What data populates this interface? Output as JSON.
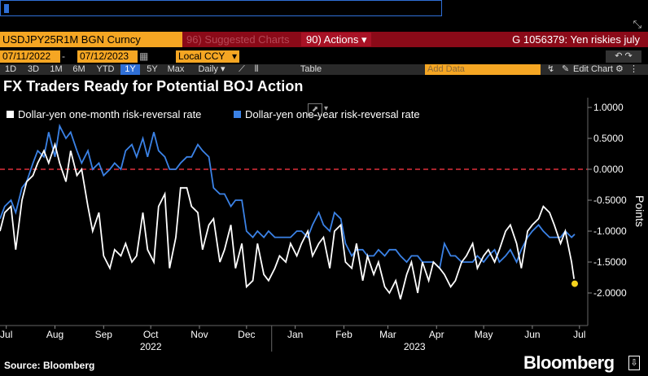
{
  "command_line": {
    "value": ""
  },
  "toolbar": {
    "ticker": "USDJPY25R1M BGN Curncy",
    "suggested": "96) Suggested Charts",
    "actions": "90) Actions",
    "actions_arrow": "▾",
    "ticket": "G 1056379: Yen riskies july"
  },
  "dates": {
    "start": "07/11/2022",
    "separator": "-",
    "end": "07/12/2023",
    "currency": "Local CCY"
  },
  "ranges": {
    "items": [
      "1D",
      "3D",
      "1M",
      "6M",
      "YTD",
      "1Y",
      "5Y",
      "Max"
    ],
    "selected": "1Y",
    "frequency": "Daily",
    "table": "Table",
    "add_data_placeholder": "Add Data",
    "edit_chart": "Edit Chart"
  },
  "colors": {
    "series1": "#ffffff",
    "series2": "#3b82e6",
    "zero_line": "#e0303a",
    "marker": "#f5d31d",
    "ticker_bg": "#f5a623"
  },
  "footer": {
    "source": "Source: Bloomberg",
    "brand": "Bloomberg"
  },
  "chart_data": {
    "type": "line",
    "title": "FX Traders Ready for Potential BOJ Action",
    "ylabel": "Points",
    "ylim": [
      -2.5,
      1.0
    ],
    "yticks": [
      "1.0000",
      "0.5000",
      "0.0000",
      "-0.5000",
      "-1.0000",
      "-1.5000",
      "-2.0000"
    ],
    "ytick_values": [
      1.0,
      0.5,
      0.0,
      -0.5,
      -1.0,
      -1.5,
      -2.0
    ],
    "xlim": [
      "2022-07-11",
      "2023-07-12"
    ],
    "xticks": [
      "Jul",
      "Aug",
      "Sep",
      "Oct",
      "Nov",
      "Dec",
      "Jan",
      "Feb",
      "Mar",
      "Apr",
      "May",
      "Jun",
      "Jul"
    ],
    "xtick_dates": [
      "2022-07-15",
      "2022-08-15",
      "2022-09-15",
      "2022-10-15",
      "2022-11-15",
      "2022-12-15",
      "2023-01-15",
      "2023-02-15",
      "2023-03-15",
      "2023-04-15",
      "2023-05-15",
      "2023-06-15",
      "2023-07-15"
    ],
    "year_labels": [
      {
        "label": "2022",
        "date": "2022-10-15"
      },
      {
        "label": "2023",
        "date": "2023-04-01"
      }
    ],
    "reference_line": 0.0,
    "legend_position": "top-left",
    "series": [
      {
        "name": "Dollar-yen one-month risk-reversal rate",
        "color": "#ffffff",
        "x": [
          "2022-07-11",
          "2022-07-14",
          "2022-07-18",
          "2022-07-21",
          "2022-07-25",
          "2022-07-28",
          "2022-08-01",
          "2022-08-04",
          "2022-08-08",
          "2022-08-11",
          "2022-08-15",
          "2022-08-18",
          "2022-08-22",
          "2022-08-25",
          "2022-08-29",
          "2022-09-01",
          "2022-09-05",
          "2022-09-08",
          "2022-09-12",
          "2022-09-15",
          "2022-09-19",
          "2022-09-22",
          "2022-09-26",
          "2022-09-29",
          "2022-10-03",
          "2022-10-06",
          "2022-10-10",
          "2022-10-13",
          "2022-10-17",
          "2022-10-20",
          "2022-10-24",
          "2022-10-27",
          "2022-10-31",
          "2022-11-03",
          "2022-11-07",
          "2022-11-10",
          "2022-11-14",
          "2022-11-17",
          "2022-11-21",
          "2022-11-24",
          "2022-11-28",
          "2022-12-01",
          "2022-12-05",
          "2022-12-08",
          "2022-12-12",
          "2022-12-15",
          "2022-12-19",
          "2022-12-22",
          "2022-12-26",
          "2022-12-29",
          "2023-01-02",
          "2023-01-05",
          "2023-01-09",
          "2023-01-12",
          "2023-01-16",
          "2023-01-19",
          "2023-01-23",
          "2023-01-26",
          "2023-01-30",
          "2023-02-02",
          "2023-02-06",
          "2023-02-09",
          "2023-02-13",
          "2023-02-16",
          "2023-02-20",
          "2023-02-23",
          "2023-02-27",
          "2023-03-02",
          "2023-03-06",
          "2023-03-09",
          "2023-03-13",
          "2023-03-16",
          "2023-03-20",
          "2023-03-23",
          "2023-03-27",
          "2023-03-30",
          "2023-04-03",
          "2023-04-06",
          "2023-04-10",
          "2023-04-13",
          "2023-04-17",
          "2023-04-20",
          "2023-04-24",
          "2023-04-27",
          "2023-05-01",
          "2023-05-04",
          "2023-05-08",
          "2023-05-11",
          "2023-05-15",
          "2023-05-18",
          "2023-05-22",
          "2023-05-25",
          "2023-05-29",
          "2023-06-01",
          "2023-06-05",
          "2023-06-08",
          "2023-06-12",
          "2023-06-15",
          "2023-06-19",
          "2023-06-22",
          "2023-06-26",
          "2023-06-29",
          "2023-07-03",
          "2023-07-06",
          "2023-07-10",
          "2023-07-12"
        ],
        "values": [
          -1.0,
          -0.7,
          -0.6,
          -1.3,
          -0.5,
          -0.2,
          -0.1,
          0.1,
          0.3,
          0.1,
          0.4,
          0.1,
          -0.2,
          0.3,
          -0.1,
          0.0,
          -0.6,
          -1.0,
          -0.7,
          -1.4,
          -1.6,
          -1.3,
          -1.4,
          -1.2,
          -1.5,
          -1.4,
          -0.7,
          -1.3,
          -1.5,
          -0.6,
          -0.4,
          -1.6,
          -1.1,
          -0.3,
          -0.3,
          -0.6,
          -0.7,
          -1.3,
          -0.9,
          -0.8,
          -1.5,
          -1.3,
          -0.9,
          -1.6,
          -1.2,
          -1.9,
          -1.8,
          -1.2,
          -1.7,
          -1.8,
          -1.6,
          -1.4,
          -1.5,
          -1.2,
          -1.4,
          -1.2,
          -1.0,
          -1.4,
          -1.2,
          -1.1,
          -1.6,
          -1.0,
          -0.9,
          -1.5,
          -1.6,
          -1.2,
          -1.8,
          -1.4,
          -1.7,
          -1.5,
          -1.9,
          -2.0,
          -1.8,
          -2.1,
          -1.7,
          -1.5,
          -2.0,
          -1.5,
          -1.8,
          -1.5,
          -1.6,
          -1.7,
          -1.9,
          -1.8,
          -1.5,
          -1.4,
          -1.2,
          -1.6,
          -1.4,
          -1.3,
          -1.5,
          -1.3,
          -1.0,
          -0.9,
          -1.2,
          -1.6,
          -1.0,
          -0.9,
          -0.8,
          -0.6,
          -0.7,
          -0.9,
          -1.2,
          -1.0,
          -1.5,
          -1.85
        ]
      },
      {
        "name": "Dollar-yen one-year risk-reversal rate",
        "color": "#3b82e6",
        "x": [
          "2022-07-11",
          "2022-07-14",
          "2022-07-18",
          "2022-07-21",
          "2022-07-25",
          "2022-07-28",
          "2022-08-01",
          "2022-08-04",
          "2022-08-08",
          "2022-08-11",
          "2022-08-15",
          "2022-08-18",
          "2022-08-22",
          "2022-08-25",
          "2022-08-29",
          "2022-09-01",
          "2022-09-05",
          "2022-09-08",
          "2022-09-12",
          "2022-09-15",
          "2022-09-19",
          "2022-09-22",
          "2022-09-26",
          "2022-09-29",
          "2022-10-03",
          "2022-10-06",
          "2022-10-10",
          "2022-10-13",
          "2022-10-17",
          "2022-10-20",
          "2022-10-24",
          "2022-10-27",
          "2022-10-31",
          "2022-11-03",
          "2022-11-07",
          "2022-11-10",
          "2022-11-14",
          "2022-11-17",
          "2022-11-21",
          "2022-11-24",
          "2022-11-28",
          "2022-12-01",
          "2022-12-05",
          "2022-12-08",
          "2022-12-12",
          "2022-12-15",
          "2022-12-19",
          "2022-12-22",
          "2022-12-26",
          "2022-12-29",
          "2023-01-02",
          "2023-01-05",
          "2023-01-09",
          "2023-01-12",
          "2023-01-16",
          "2023-01-19",
          "2023-01-23",
          "2023-01-26",
          "2023-01-30",
          "2023-02-02",
          "2023-02-06",
          "2023-02-09",
          "2023-02-13",
          "2023-02-16",
          "2023-02-20",
          "2023-02-23",
          "2023-02-27",
          "2023-03-02",
          "2023-03-06",
          "2023-03-09",
          "2023-03-13",
          "2023-03-16",
          "2023-03-20",
          "2023-03-23",
          "2023-03-27",
          "2023-03-30",
          "2023-04-03",
          "2023-04-06",
          "2023-04-10",
          "2023-04-13",
          "2023-04-17",
          "2023-04-20",
          "2023-04-24",
          "2023-04-27",
          "2023-05-01",
          "2023-05-04",
          "2023-05-08",
          "2023-05-11",
          "2023-05-15",
          "2023-05-18",
          "2023-05-22",
          "2023-05-25",
          "2023-05-29",
          "2023-06-01",
          "2023-06-05",
          "2023-06-08",
          "2023-06-12",
          "2023-06-15",
          "2023-06-19",
          "2023-06-22",
          "2023-06-26",
          "2023-06-29",
          "2023-07-03",
          "2023-07-06",
          "2023-07-10",
          "2023-07-12"
        ],
        "values": [
          -0.8,
          -0.6,
          -0.5,
          -0.7,
          -0.3,
          -0.2,
          0.1,
          0.3,
          0.2,
          0.6,
          0.2,
          0.7,
          0.5,
          0.6,
          0.3,
          0.1,
          0.3,
          0.0,
          0.1,
          -0.1,
          0.0,
          0.1,
          0.0,
          0.3,
          0.4,
          0.2,
          0.5,
          0.2,
          0.6,
          0.3,
          0.2,
          0.0,
          0.0,
          0.1,
          0.2,
          0.2,
          0.4,
          0.3,
          0.2,
          -0.3,
          -0.4,
          -0.4,
          -0.6,
          -0.5,
          -0.5,
          -1.0,
          -1.1,
          -1.0,
          -1.1,
          -1.0,
          -1.1,
          -1.1,
          -1.1,
          -1.1,
          -1.0,
          -1.0,
          -1.1,
          -0.9,
          -0.7,
          -0.9,
          -1.0,
          -0.7,
          -0.8,
          -1.2,
          -1.4,
          -1.3,
          -1.3,
          -1.4,
          -1.4,
          -1.3,
          -1.4,
          -1.3,
          -1.3,
          -1.4,
          -1.5,
          -1.4,
          -1.4,
          -1.5,
          -1.5,
          -1.5,
          -1.6,
          -1.2,
          -1.4,
          -1.4,
          -1.5,
          -1.5,
          -1.5,
          -1.4,
          -1.5,
          -1.4,
          -1.3,
          -1.5,
          -1.4,
          -1.3,
          -1.5,
          -1.3,
          -1.1,
          -1.0,
          -0.9,
          -1.0,
          -1.1,
          -1.1,
          -1.1,
          -1.0,
          -1.1,
          -1.05
        ]
      }
    ],
    "marker": {
      "x": "2023-07-12",
      "y": -1.85
    }
  }
}
